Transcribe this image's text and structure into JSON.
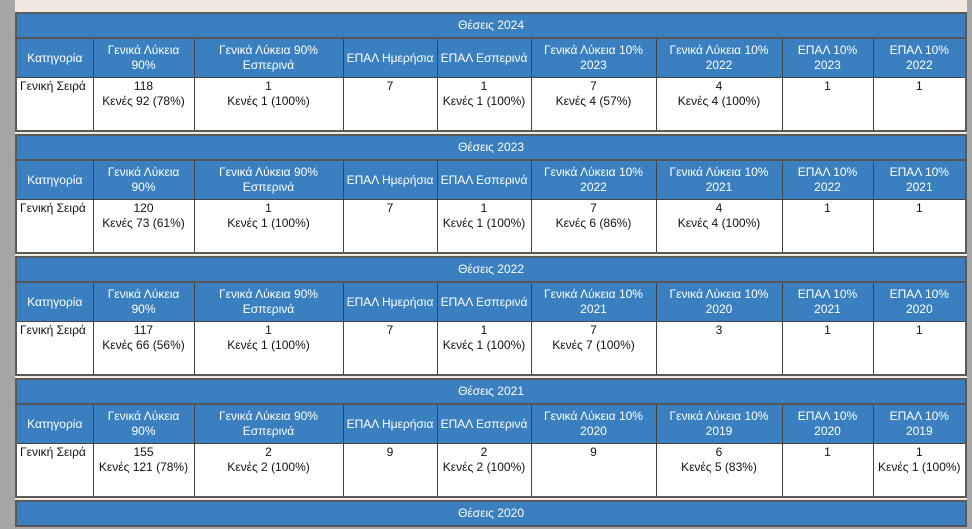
{
  "colors": {
    "header": "#3a80c1",
    "background": "#f1e9df"
  },
  "tables": [
    {
      "title": "Θέσεις 2024",
      "headers": [
        "Κατηγορία",
        "Γενικά Λύκεια 90%",
        "Γενικά Λύκεια 90% Εσπερινά",
        "ΕΠΑΛ Ημερήσια",
        "ΕΠΑΛ Εσπερινά",
        "Γενικά Λύκεια 10% 2023",
        "Γενικά Λύκεια 10% 2022",
        "ΕΠΑΛ 10% 2023",
        "ΕΠΑΛ 10% 2022"
      ],
      "row": {
        "category": "Γενική Σειρά",
        "cells": [
          [
            "118",
            "Κενές 92 (78%)"
          ],
          [
            "1",
            "Κενές 1 (100%)"
          ],
          [
            "7"
          ],
          [
            "1",
            "Κενές 1 (100%)"
          ],
          [
            "7",
            "Κενές 4 (57%)"
          ],
          [
            "4",
            "Κενές 4 (100%)"
          ],
          [
            "1"
          ],
          [
            "1"
          ]
        ]
      }
    },
    {
      "title": "Θέσεις 2023",
      "headers": [
        "Κατηγορία",
        "Γενικά Λύκεια 90%",
        "Γενικά Λύκεια 90% Εσπερινά",
        "ΕΠΑΛ Ημερήσια",
        "ΕΠΑΛ Εσπερινά",
        "Γενικά Λύκεια 10% 2022",
        "Γενικά Λύκεια 10% 2021",
        "ΕΠΑΛ 10% 2022",
        "ΕΠΑΛ 10% 2021"
      ],
      "row": {
        "category": "Γενική Σειρά",
        "cells": [
          [
            "120",
            "Κενές 73 (61%)"
          ],
          [
            "1",
            "Κενές 1 (100%)"
          ],
          [
            "7"
          ],
          [
            "1",
            "Κενές 1 (100%)"
          ],
          [
            "7",
            "Κενές 6 (86%)"
          ],
          [
            "4",
            "Κενές 4 (100%)"
          ],
          [
            "1"
          ],
          [
            "1"
          ]
        ]
      }
    },
    {
      "title": "Θέσεις 2022",
      "headers": [
        "Κατηγορία",
        "Γενικά Λύκεια 90%",
        "Γενικά Λύκεια 90% Εσπερινά",
        "ΕΠΑΛ Ημερήσια",
        "ΕΠΑΛ Εσπερινά",
        "Γενικά Λύκεια 10% 2021",
        "Γενικά Λύκεια 10% 2020",
        "ΕΠΑΛ 10% 2021",
        "ΕΠΑΛ 10% 2020"
      ],
      "row": {
        "category": "Γενική Σειρά",
        "cells": [
          [
            "117",
            "Κενές 66 (56%)"
          ],
          [
            "1",
            "Κενές 1 (100%)"
          ],
          [
            "7"
          ],
          [
            "1",
            "Κενές 1 (100%)"
          ],
          [
            "7",
            "Κενές 7 (100%)"
          ],
          [
            "3"
          ],
          [
            "1"
          ],
          [
            "1"
          ]
        ]
      }
    },
    {
      "title": "Θέσεις 2021",
      "headers": [
        "Κατηγορία",
        "Γενικά Λύκεια 90%",
        "Γενικά Λύκεια 90% Εσπερινά",
        "ΕΠΑΛ Ημερήσια",
        "ΕΠΑΛ Εσπερινά",
        "Γενικά Λύκεια 10% 2020",
        "Γενικά Λύκεια 10% 2019",
        "ΕΠΑΛ 10% 2020",
        "ΕΠΑΛ 10% 2019"
      ],
      "row": {
        "category": "Γενική Σειρά",
        "cells": [
          [
            "155",
            "Κενές 121 (78%)"
          ],
          [
            "2",
            "Κενές 2 (100%)"
          ],
          [
            "9"
          ],
          [
            "2",
            "Κενές 2 (100%)"
          ],
          [
            "9"
          ],
          [
            "6",
            "Κενές 5 (83%)"
          ],
          [
            "1"
          ],
          [
            "1",
            "Κενές 1 (100%)"
          ]
        ]
      }
    },
    {
      "title": "Θέσεις 2020",
      "headers": [],
      "row": null
    }
  ]
}
